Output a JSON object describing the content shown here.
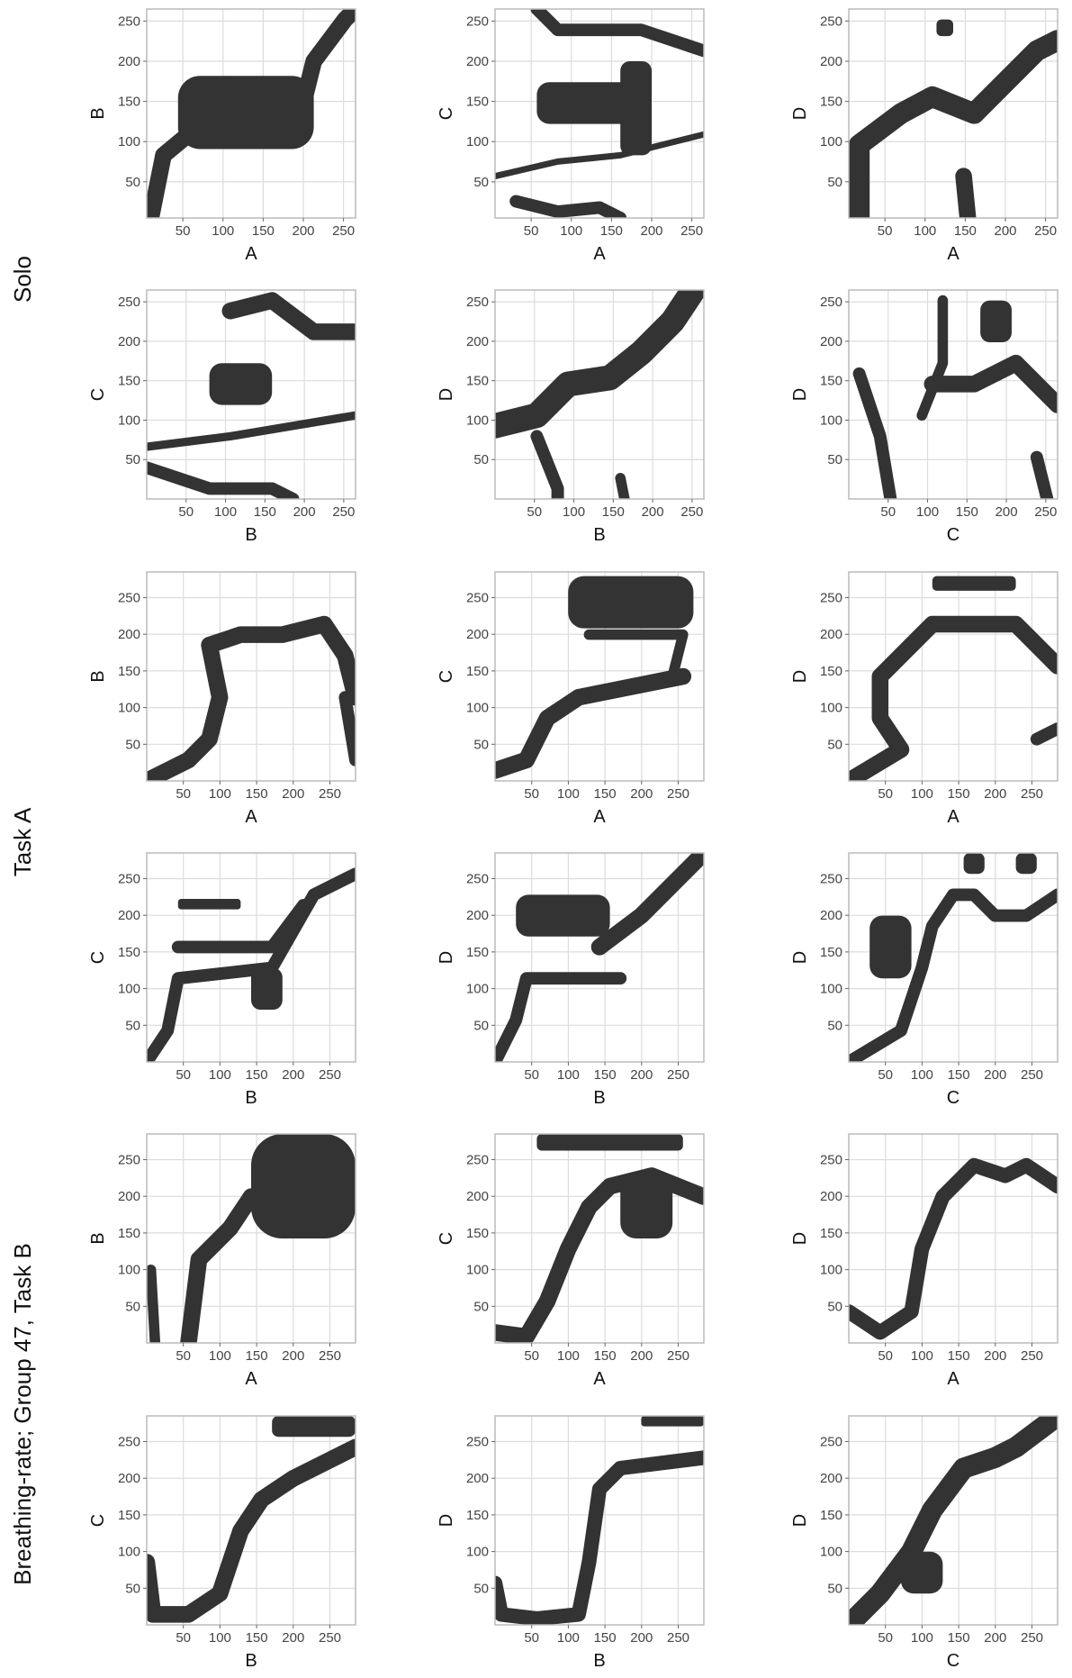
{
  "row_labels": [
    "Solo",
    "Task A",
    "Breathing-rate; Group 47, Task B"
  ],
  "chart_data": [
    {
      "type": "raster",
      "xlabel": "A",
      "ylabel": "B",
      "xlim": [
        5,
        265
      ],
      "ylim": [
        5,
        265
      ],
      "xticks": [
        50,
        100,
        150,
        200,
        250
      ],
      "yticks": [
        50,
        100,
        150,
        200,
        250
      ],
      "grid": true,
      "color": "#333333"
    },
    {
      "type": "raster",
      "xlabel": "A",
      "ylabel": "C",
      "xlim": [
        5,
        265
      ],
      "ylim": [
        5,
        265
      ],
      "xticks": [
        50,
        100,
        150,
        200,
        250
      ],
      "yticks": [
        50,
        100,
        150,
        200,
        250
      ],
      "grid": true,
      "color": "#333333"
    },
    {
      "type": "raster",
      "xlabel": "A",
      "ylabel": "D",
      "xlim": [
        5,
        265
      ],
      "ylim": [
        5,
        265
      ],
      "xticks": [
        50,
        100,
        150,
        200,
        250
      ],
      "yticks": [
        50,
        100,
        150,
        200,
        250
      ],
      "grid": true,
      "color": "#333333"
    },
    {
      "type": "raster",
      "xlabel": "B",
      "ylabel": "C",
      "xlim": [
        0,
        265
      ],
      "ylim": [
        0,
        265
      ],
      "xticks": [
        50,
        100,
        150,
        200,
        250
      ],
      "yticks": [
        50,
        100,
        150,
        200,
        250
      ],
      "grid": true,
      "color": "#333333"
    },
    {
      "type": "raster",
      "xlabel": "B",
      "ylabel": "D",
      "xlim": [
        0,
        265
      ],
      "ylim": [
        0,
        265
      ],
      "xticks": [
        50,
        100,
        150,
        200,
        250
      ],
      "yticks": [
        50,
        100,
        150,
        200,
        250
      ],
      "grid": true,
      "color": "#333333"
    },
    {
      "type": "raster",
      "xlabel": "C",
      "ylabel": "D",
      "xlim": [
        0,
        265
      ],
      "ylim": [
        0,
        265
      ],
      "xticks": [
        50,
        100,
        150,
        200,
        250
      ],
      "yticks": [
        50,
        100,
        150,
        200,
        250
      ],
      "grid": true,
      "color": "#333333"
    },
    {
      "type": "raster",
      "xlabel": "A",
      "ylabel": "B",
      "xlim": [
        0,
        285
      ],
      "ylim": [
        0,
        285
      ],
      "xticks": [
        50,
        100,
        150,
        200,
        250
      ],
      "yticks": [
        50,
        100,
        150,
        200,
        250
      ],
      "grid": true,
      "color": "#333333"
    },
    {
      "type": "raster",
      "xlabel": "A",
      "ylabel": "C",
      "xlim": [
        0,
        285
      ],
      "ylim": [
        0,
        285
      ],
      "xticks": [
        50,
        100,
        150,
        200,
        250
      ],
      "yticks": [
        50,
        100,
        150,
        200,
        250
      ],
      "grid": true,
      "color": "#333333"
    },
    {
      "type": "raster",
      "xlabel": "A",
      "ylabel": "D",
      "xlim": [
        0,
        285
      ],
      "ylim": [
        0,
        285
      ],
      "xticks": [
        50,
        100,
        150,
        200,
        250
      ],
      "yticks": [
        50,
        100,
        150,
        200,
        250
      ],
      "grid": true,
      "color": "#333333"
    },
    {
      "type": "raster",
      "xlabel": "B",
      "ylabel": "C",
      "xlim": [
        0,
        285
      ],
      "ylim": [
        0,
        285
      ],
      "xticks": [
        50,
        100,
        150,
        200,
        250
      ],
      "yticks": [
        50,
        100,
        150,
        200,
        250
      ],
      "grid": true,
      "color": "#333333"
    },
    {
      "type": "raster",
      "xlabel": "B",
      "ylabel": "D",
      "xlim": [
        0,
        285
      ],
      "ylim": [
        0,
        285
      ],
      "xticks": [
        50,
        100,
        150,
        200,
        250
      ],
      "yticks": [
        50,
        100,
        150,
        200,
        250
      ],
      "grid": true,
      "color": "#333333"
    },
    {
      "type": "raster",
      "xlabel": "C",
      "ylabel": "D",
      "xlim": [
        0,
        285
      ],
      "ylim": [
        0,
        285
      ],
      "xticks": [
        50,
        100,
        150,
        200,
        250
      ],
      "yticks": [
        50,
        100,
        150,
        200,
        250
      ],
      "grid": true,
      "color": "#333333"
    },
    {
      "type": "raster",
      "xlabel": "A",
      "ylabel": "B",
      "xlim": [
        0,
        285
      ],
      "ylim": [
        0,
        285
      ],
      "xticks": [
        50,
        100,
        150,
        200,
        250
      ],
      "yticks": [
        50,
        100,
        150,
        200,
        250
      ],
      "grid": true,
      "color": "#333333"
    },
    {
      "type": "raster",
      "xlabel": "A",
      "ylabel": "C",
      "xlim": [
        0,
        285
      ],
      "ylim": [
        0,
        285
      ],
      "xticks": [
        50,
        100,
        150,
        200,
        250
      ],
      "yticks": [
        50,
        100,
        150,
        200,
        250
      ],
      "grid": true,
      "color": "#333333"
    },
    {
      "type": "raster",
      "xlabel": "A",
      "ylabel": "D",
      "xlim": [
        0,
        285
      ],
      "ylim": [
        0,
        285
      ],
      "xticks": [
        50,
        100,
        150,
        200,
        250
      ],
      "yticks": [
        50,
        100,
        150,
        200,
        250
      ],
      "grid": true,
      "color": "#333333"
    },
    {
      "type": "raster",
      "xlabel": "B",
      "ylabel": "C",
      "xlim": [
        0,
        285
      ],
      "ylim": [
        0,
        285
      ],
      "xticks": [
        50,
        100,
        150,
        200,
        250
      ],
      "yticks": [
        50,
        100,
        150,
        200,
        250
      ],
      "grid": true,
      "color": "#333333"
    },
    {
      "type": "raster",
      "xlabel": "B",
      "ylabel": "D",
      "xlim": [
        0,
        285
      ],
      "ylim": [
        0,
        285
      ],
      "xticks": [
        50,
        100,
        150,
        200,
        250
      ],
      "yticks": [
        50,
        100,
        150,
        200,
        250
      ],
      "grid": true,
      "color": "#333333"
    },
    {
      "type": "raster",
      "xlabel": "C",
      "ylabel": "D",
      "xlim": [
        0,
        285
      ],
      "ylim": [
        0,
        285
      ],
      "xticks": [
        50,
        100,
        150,
        200,
        250
      ],
      "yticks": [
        50,
        100,
        150,
        200,
        250
      ],
      "grid": true,
      "color": "#333333"
    }
  ]
}
